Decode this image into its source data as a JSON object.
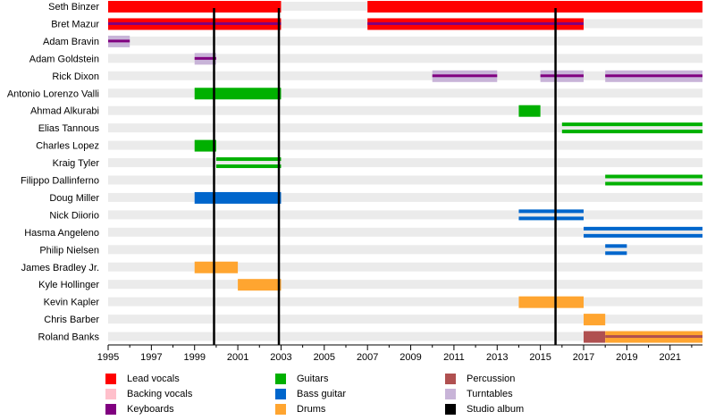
{
  "chart_data": {
    "type": "timeline",
    "x_range": [
      1995,
      2022.5
    ],
    "x_ticks": [
      "1995",
      "1997",
      "1999",
      "2001",
      "2003",
      "2005",
      "2007",
      "2009",
      "2011",
      "2013",
      "2015",
      "2017",
      "2019",
      "2021"
    ],
    "grid": "horizontal row stripes",
    "legend_placement": "bottom",
    "roles": [
      {
        "key": "lead",
        "label": "Lead vocals",
        "color": "#ff0000"
      },
      {
        "key": "backing",
        "label": "Backing vocals",
        "color": "#ffc0cb"
      },
      {
        "key": "keys",
        "label": "Keyboards",
        "color": "#800080"
      },
      {
        "key": "guitar",
        "label": "Guitars",
        "color": "#00b000"
      },
      {
        "key": "bass",
        "label": "Bass guitar",
        "color": "#0066cc"
      },
      {
        "key": "drums",
        "label": "Drums",
        "color": "#ffa530"
      },
      {
        "key": "perc",
        "label": "Percussion",
        "color": "#b05050"
      },
      {
        "key": "turn",
        "label": "Turntables",
        "color": "#c8b4d8"
      },
      {
        "key": "album",
        "label": "Studio album",
        "color": "#000000"
      }
    ],
    "studio_albums": [
      1999.9,
      2002.9,
      2015.7
    ],
    "members": [
      {
        "name": "Seth Binzer",
        "spans": [
          {
            "role": "lead",
            "start": 1995,
            "end": 2003
          },
          {
            "role": "lead",
            "start": 2007,
            "end": 2022.5
          }
        ]
      },
      {
        "name": "Bret Mazur",
        "spans": [
          {
            "role": "lead",
            "start": 1995,
            "end": 2003,
            "secondary": "keys"
          },
          {
            "role": "lead",
            "start": 2007,
            "end": 2017,
            "secondary": "keys"
          }
        ]
      },
      {
        "name": "Adam Bravin",
        "spans": [
          {
            "role": "turn",
            "start": 1995,
            "end": 1996,
            "secondary": "keys"
          }
        ]
      },
      {
        "name": "Adam Goldstein",
        "spans": [
          {
            "role": "turn",
            "start": 1999,
            "end": 2000,
            "secondary": "keys"
          }
        ]
      },
      {
        "name": "Rick Dixon",
        "spans": [
          {
            "role": "turn",
            "start": 2010,
            "end": 2013,
            "secondary": "keys"
          },
          {
            "role": "turn",
            "start": 2015,
            "end": 2017,
            "secondary": "keys"
          },
          {
            "role": "turn",
            "start": 2018,
            "end": 2022.5,
            "secondary": "keys"
          }
        ]
      },
      {
        "name": "Antonio Lorenzo Valli",
        "spans": [
          {
            "role": "guitar",
            "start": 1999,
            "end": 2003
          }
        ]
      },
      {
        "name": "Ahmad Alkurabi",
        "spans": [
          {
            "role": "guitar",
            "start": 2014,
            "end": 2015
          }
        ]
      },
      {
        "name": "Elias Tannous",
        "spans": [
          {
            "role": "guitar",
            "start": 2016,
            "end": 2022.5,
            "striped": true
          }
        ]
      },
      {
        "name": "Charles Lopez",
        "spans": [
          {
            "role": "guitar",
            "start": 1999,
            "end": 2000
          }
        ]
      },
      {
        "name": "Kraig Tyler",
        "spans": [
          {
            "role": "guitar",
            "start": 2000,
            "end": 2003,
            "striped": true
          }
        ]
      },
      {
        "name": "Filippo Dallinferno",
        "spans": [
          {
            "role": "guitar",
            "start": 2018,
            "end": 2022.5,
            "striped": true
          }
        ]
      },
      {
        "name": "Doug Miller",
        "spans": [
          {
            "role": "bass",
            "start": 1999,
            "end": 2003
          }
        ]
      },
      {
        "name": "Nick Diiorio",
        "spans": [
          {
            "role": "bass",
            "start": 2014,
            "end": 2017,
            "striped": true
          }
        ]
      },
      {
        "name": "Hasma Angeleno",
        "spans": [
          {
            "role": "bass",
            "start": 2017,
            "end": 2022.5,
            "striped": true
          }
        ]
      },
      {
        "name": "Philip Nielsen",
        "spans": [
          {
            "role": "bass",
            "start": 2018,
            "end": 2019,
            "striped": true
          }
        ]
      },
      {
        "name": "James Bradley Jr.",
        "spans": [
          {
            "role": "drums",
            "start": 1999,
            "end": 2001
          }
        ]
      },
      {
        "name": "Kyle Hollinger",
        "spans": [
          {
            "role": "drums",
            "start": 2001,
            "end": 2003
          }
        ]
      },
      {
        "name": "Kevin Kapler",
        "spans": [
          {
            "role": "drums",
            "start": 2014,
            "end": 2017
          }
        ]
      },
      {
        "name": "Chris Barber",
        "spans": [
          {
            "role": "drums",
            "start": 2017,
            "end": 2018
          }
        ]
      },
      {
        "name": "Roland Banks",
        "spans": [
          {
            "role": "perc",
            "start": 2017,
            "end": 2018
          },
          {
            "role": "drums",
            "start": 2018,
            "end": 2022.5,
            "secondary": "perc"
          }
        ]
      }
    ]
  }
}
